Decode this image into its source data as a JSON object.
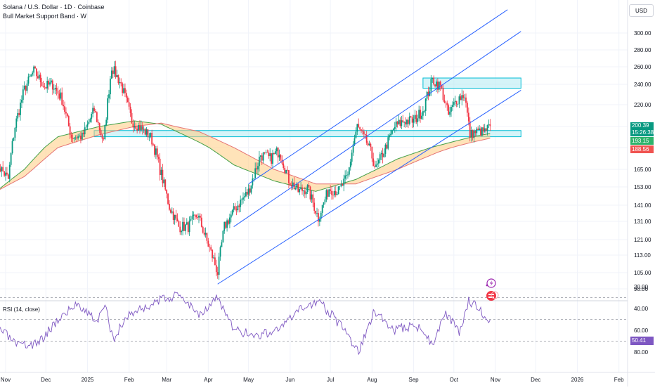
{
  "header": {
    "symbol": "Solana / U.S. Dollar · 1D · Coinbase",
    "indicator": "Bull Market Support Band · W"
  },
  "currency_label": "USD",
  "price_tags": {
    "last": "200.39",
    "countdown": "15:26:38",
    "sma": "193.15",
    "ema": "188.56",
    "rsi": "50.41",
    "last_color": "#089981",
    "sma_color": "#2db36b",
    "ema_color": "#f05350",
    "rsi_color": "#7e57c2"
  },
  "rsi_label": "RSI (14, close)",
  "colors": {
    "up": "#089981",
    "down": "#f23645",
    "channel": "#2962ff",
    "zone_fill": "#b2ebf2",
    "zone_border": "#00bcd4",
    "band_fill": "#ffcc80",
    "rsi_line": "#7e57c2",
    "rsi_band": "#ede7f6"
  },
  "chart_data": {
    "type": "candlestick",
    "price_axis_ticks": [
      98,
      105,
      113,
      121,
      131,
      141,
      153,
      165,
      180,
      200,
      220,
      240,
      260,
      280,
      300
    ],
    "x_tick_labels": [
      "Nov",
      "Dec",
      "2025",
      "Feb",
      "Mar",
      "Apr",
      "May",
      "Jun",
      "Jul",
      "Aug",
      "Sep",
      "Oct",
      "Nov",
      "Dec",
      "2026",
      "Feb"
    ],
    "x_tick_dates": [
      "2024-11-01",
      "2024-12-01",
      "2025-01-01",
      "2025-02-01",
      "2025-03-01",
      "2025-04-01",
      "2025-05-01",
      "2025-06-01",
      "2025-07-01",
      "2025-08-01",
      "2025-09-01",
      "2025-10-01",
      "2025-11-01",
      "2025-12-01",
      "2026-01-01",
      "2026-02-01"
    ],
    "close_path": [
      [
        "2024-10-25",
        170
      ],
      [
        "2024-11-03",
        158
      ],
      [
        "2024-11-08",
        200
      ],
      [
        "2024-11-15",
        235
      ],
      [
        "2024-11-22",
        255
      ],
      [
        "2024-11-30",
        238
      ],
      [
        "2024-12-06",
        240
      ],
      [
        "2024-12-13",
        225
      ],
      [
        "2024-12-20",
        190
      ],
      [
        "2024-12-28",
        190
      ],
      [
        "2025-01-06",
        215
      ],
      [
        "2025-01-13",
        185
      ],
      [
        "2025-01-19",
        260
      ],
      [
        "2025-01-26",
        240
      ],
      [
        "2025-02-03",
        205
      ],
      [
        "2025-02-10",
        198
      ],
      [
        "2025-02-17",
        190
      ],
      [
        "2025-02-24",
        165
      ],
      [
        "2025-03-03",
        140
      ],
      [
        "2025-03-10",
        128
      ],
      [
        "2025-03-17",
        128
      ],
      [
        "2025-03-24",
        135
      ],
      [
        "2025-03-31",
        120
      ],
      [
        "2025-04-08",
        105
      ],
      [
        "2025-04-13",
        128
      ],
      [
        "2025-04-22",
        140
      ],
      [
        "2025-05-01",
        150
      ],
      [
        "2025-05-10",
        175
      ],
      [
        "2025-05-17",
        172
      ],
      [
        "2025-05-24",
        178
      ],
      [
        "2025-05-31",
        158
      ],
      [
        "2025-06-07",
        150
      ],
      [
        "2025-06-14",
        152
      ],
      [
        "2025-06-22",
        133
      ],
      [
        "2025-06-30",
        152
      ],
      [
        "2025-07-07",
        150
      ],
      [
        "2025-07-14",
        160
      ],
      [
        "2025-07-21",
        200
      ],
      [
        "2025-07-28",
        185
      ],
      [
        "2025-08-04",
        165
      ],
      [
        "2025-08-11",
        180
      ],
      [
        "2025-08-18",
        200
      ],
      [
        "2025-08-25",
        205
      ],
      [
        "2025-09-01",
        205
      ],
      [
        "2025-09-08",
        215
      ],
      [
        "2025-09-15",
        245
      ],
      [
        "2025-09-21",
        238
      ],
      [
        "2025-09-27",
        210
      ],
      [
        "2025-10-03",
        225
      ],
      [
        "2025-10-09",
        230
      ],
      [
        "2025-10-13",
        192
      ],
      [
        "2025-10-18",
        195
      ],
      [
        "2025-10-24",
        195
      ],
      [
        "2025-10-28",
        200.39
      ]
    ],
    "sma_path": [
      [
        "2024-10-25",
        150
      ],
      [
        "2024-11-15",
        165
      ],
      [
        "2024-12-10",
        190
      ],
      [
        "2025-01-10",
        200
      ],
      [
        "2025-02-05",
        205
      ],
      [
        "2025-02-25",
        202
      ],
      [
        "2025-03-25",
        185
      ],
      [
        "2025-04-20",
        168
      ],
      [
        "2025-05-20",
        157
      ],
      [
        "2025-06-20",
        150
      ],
      [
        "2025-07-20",
        158
      ],
      [
        "2025-08-20",
        172
      ],
      [
        "2025-09-20",
        182
      ],
      [
        "2025-10-15",
        190
      ],
      [
        "2025-10-28",
        193.15
      ]
    ],
    "ema_path": [
      [
        "2024-10-25",
        150
      ],
      [
        "2024-11-15",
        160
      ],
      [
        "2024-12-10",
        180
      ],
      [
        "2025-01-10",
        192
      ],
      [
        "2025-02-05",
        200
      ],
      [
        "2025-02-25",
        203
      ],
      [
        "2025-03-25",
        195
      ],
      [
        "2025-04-20",
        180
      ],
      [
        "2025-05-20",
        165
      ],
      [
        "2025-06-20",
        155
      ],
      [
        "2025-07-20",
        155
      ],
      [
        "2025-08-20",
        165
      ],
      [
        "2025-09-20",
        177
      ],
      [
        "2025-10-15",
        185
      ],
      [
        "2025-10-28",
        188.56
      ]
    ],
    "support_zone": {
      "from": "2025-01-06",
      "to": "2025-11-20",
      "low": 190,
      "high": 196
    },
    "resistance_zone": {
      "from": "2025-09-08",
      "to": "2025-11-20",
      "low": 236,
      "high": 247
    },
    "channel_lines": [
      {
        "from": [
          "2025-04-08",
          100
        ],
        "to": [
          "2025-11-20",
          234
        ]
      },
      {
        "from": [
          "2025-04-20",
          128
        ],
        "to": [
          "2025-11-20",
          302
        ]
      },
      {
        "from": [
          "2025-05-01",
          155
        ],
        "to": [
          "2025-11-10",
          330
        ]
      }
    ],
    "rsi": {
      "axis_ticks": [
        20,
        40,
        60,
        80
      ],
      "overbought": 70,
      "oversold": 30,
      "midline": 50,
      "path": [
        [
          "2024-10-25",
          55
        ],
        [
          "2024-11-10",
          75
        ],
        [
          "2024-11-25",
          72
        ],
        [
          "2024-12-10",
          50
        ],
        [
          "2024-12-25",
          35
        ],
        [
          "2025-01-08",
          52
        ],
        [
          "2025-01-14",
          38
        ],
        [
          "2025-01-20",
          68
        ],
        [
          "2025-02-01",
          45
        ],
        [
          "2025-02-15",
          38
        ],
        [
          "2025-03-01",
          30
        ],
        [
          "2025-03-12",
          28
        ],
        [
          "2025-03-25",
          45
        ],
        [
          "2025-04-08",
          30
        ],
        [
          "2025-04-20",
          60
        ],
        [
          "2025-05-08",
          65
        ],
        [
          "2025-05-25",
          58
        ],
        [
          "2025-06-10",
          40
        ],
        [
          "2025-06-22",
          32
        ],
        [
          "2025-07-10",
          58
        ],
        [
          "2025-07-22",
          80
        ],
        [
          "2025-08-03",
          42
        ],
        [
          "2025-08-18",
          60
        ],
        [
          "2025-09-03",
          55
        ],
        [
          "2025-09-15",
          72
        ],
        [
          "2025-09-25",
          45
        ],
        [
          "2025-10-05",
          62
        ],
        [
          "2025-10-12",
          32
        ],
        [
          "2025-10-20",
          42
        ],
        [
          "2025-10-28",
          50.41
        ]
      ]
    }
  }
}
